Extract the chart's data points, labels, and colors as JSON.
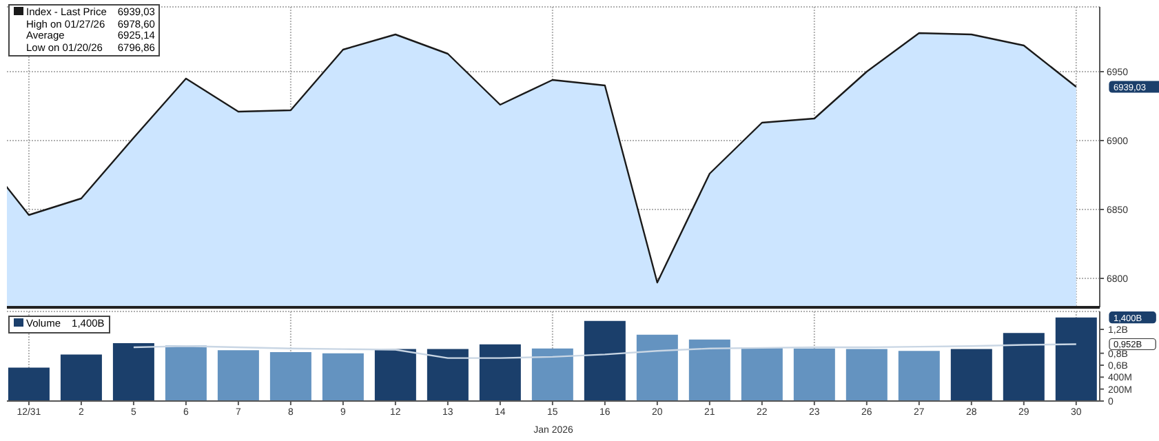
{
  "chart_data": [
    {
      "type": "area",
      "categories": [
        null,
        "12/31",
        "2",
        "5",
        "6",
        "7",
        "8",
        "9",
        "12",
        "13",
        "14",
        "15",
        "16",
        "20",
        "21",
        "22",
        "23",
        "26",
        "27",
        "28",
        "29",
        "30"
      ],
      "series": [
        {
          "name": "Index - Last Price",
          "color": "#1a1a1a",
          "values": [
            6894,
            6846,
            6858,
            6902,
            6945,
            6921,
            6922,
            6966,
            6977,
            6963,
            6926,
            6944,
            6940,
            6797,
            6876,
            6913,
            6916,
            6950,
            6978,
            6977,
            6969,
            6939
          ]
        }
      ],
      "ylim": [
        6779,
        6997
      ],
      "yticks": [
        6800,
        6850,
        6900,
        6950
      ],
      "grid": true,
      "legend": "top left",
      "tick_labels": "y",
      "annotations": [
        "6939,03",
        "High on 01/27/26 6978,60",
        "Average 6925,14",
        "Low on 01/20/26 6796,86"
      ]
    },
    {
      "type": "bar",
      "categories": [
        null,
        "12/31",
        "2",
        "5",
        "6",
        "7",
        "8",
        "9",
        "12",
        "13",
        "14",
        "15",
        "16",
        "20",
        "21",
        "22",
        "23",
        "26",
        "27",
        "28",
        "29",
        "30"
      ],
      "xlabel": "Jan 2026",
      "series": [
        {
          "name": "Volume",
          "colors": [
            "#1b3f6b",
            "#1b3f6b",
            "#1b3f6b",
            "#1b3f6b",
            "#6493c0",
            "#6493c0",
            "#6493c0",
            "#6493c0",
            "#1b3f6b",
            "#1b3f6b",
            "#1b3f6b",
            "#6493c0",
            "#1b3f6b",
            "#6493c0",
            "#6493c0",
            "#6493c0",
            "#6493c0",
            "#6493c0",
            "#6493c0",
            "#1b3f6b",
            "#1b3f6b",
            "#1b3f6b"
          ],
          "values": [
            null,
            560000000,
            780000000,
            970000000,
            930000000,
            850000000,
            820000000,
            800000000,
            870000000,
            870000000,
            950000000,
            880000000,
            1340000000,
            1110000000,
            1030000000,
            900000000,
            880000000,
            870000000,
            840000000,
            870000000,
            1140000000,
            1400000000
          ]
        },
        {
          "type": "line",
          "color": "#c9d6e4",
          "values": [
            null,
            null,
            null,
            900000000,
            920000000,
            900000000,
            880000000,
            870000000,
            860000000,
            720000000,
            720000000,
            740000000,
            780000000,
            840000000,
            880000000,
            890000000,
            900000000,
            900000000,
            910000000,
            920000000,
            940000000,
            952000000
          ]
        }
      ],
      "ylim": [
        0,
        1500000000
      ],
      "yticks": [
        0,
        {
          "value": 200000000,
          "label": "200M"
        },
        {
          "value": 400000000,
          "label": "400M"
        },
        {
          "value": 600000000,
          "label": "0,6B"
        },
        {
          "value": 800000000,
          "label": "0,8B"
        },
        {
          "value": 1200000000,
          "label": "1,2B"
        }
      ],
      "grid": true,
      "legend": "top left",
      "annotations": [
        "1,400B",
        "0,952B"
      ]
    }
  ]
}
